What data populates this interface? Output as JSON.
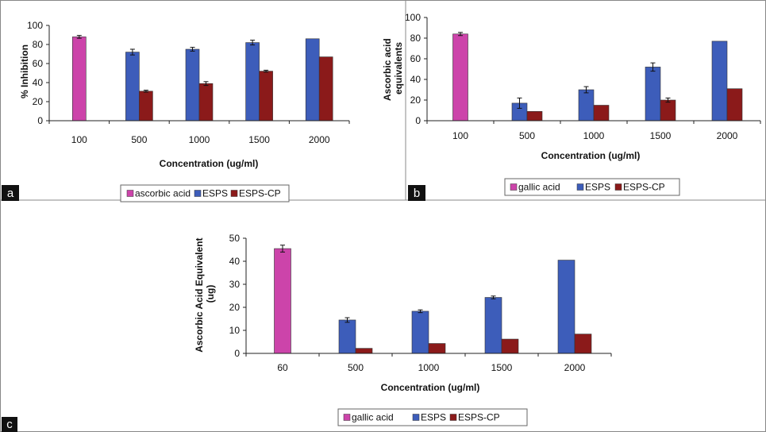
{
  "chart_data": [
    {
      "panel": "a",
      "type": "bar",
      "categories": [
        "100",
        "500",
        "1000",
        "1500",
        "2000"
      ],
      "series": [
        {
          "name": "ascorbic acid",
          "color": "#cc44aa",
          "values": [
            88,
            null,
            null,
            null,
            null
          ],
          "errors": [
            1.5,
            null,
            null,
            null,
            null
          ]
        },
        {
          "name": "ESPS",
          "color": "#3d5dba",
          "values": [
            null,
            72,
            75,
            82,
            86
          ],
          "errors": [
            null,
            3,
            2,
            2.5,
            0
          ]
        },
        {
          "name": "ESPS-CP",
          "color": "#8b1a1a",
          "values": [
            null,
            31,
            39,
            52,
            67
          ],
          "errors": [
            null,
            1,
            2,
            1,
            0
          ]
        }
      ],
      "title": "",
      "xlabel": "Concentration (ug/ml)",
      "ylabel": "% Inhibition",
      "ylim": [
        0,
        100
      ],
      "yticks": [
        0,
        20,
        40,
        60,
        80,
        100
      ],
      "grid": false,
      "legend_placement": "bottom"
    },
    {
      "panel": "b",
      "type": "bar",
      "categories": [
        "100",
        "500",
        "1000",
        "1500",
        "2000"
      ],
      "series": [
        {
          "name": "gallic acid",
          "color": "#cc44aa",
          "values": [
            84,
            null,
            null,
            null,
            null
          ],
          "errors": [
            1.5,
            null,
            null,
            null,
            null
          ]
        },
        {
          "name": "ESPS",
          "color": "#3d5dba",
          "values": [
            null,
            17,
            30,
            52,
            77
          ],
          "errors": [
            null,
            5,
            3,
            4,
            0
          ]
        },
        {
          "name": "ESPS-CP",
          "color": "#8b1a1a",
          "values": [
            null,
            9,
            15,
            20,
            31
          ],
          "errors": [
            null,
            0,
            0,
            2,
            0
          ]
        }
      ],
      "title": "",
      "xlabel": "Concentration (ug/ml)",
      "ylabel": "Ascorbic acid equivalents",
      "ylim": [
        0,
        100
      ],
      "yticks": [
        0,
        20,
        40,
        60,
        80,
        100
      ],
      "grid": false,
      "legend_placement": "bottom"
    },
    {
      "panel": "c",
      "type": "bar",
      "categories": [
        "60",
        "500",
        "1000",
        "1500",
        "2000"
      ],
      "series": [
        {
          "name": "gallic acid",
          "color": "#cc44aa",
          "values": [
            45.5,
            null,
            null,
            null,
            null
          ],
          "errors": [
            1.5,
            null,
            null,
            null,
            null
          ]
        },
        {
          "name": "ESPS",
          "color": "#3d5dba",
          "values": [
            null,
            14.5,
            18.3,
            24.3,
            40.5
          ],
          "errors": [
            null,
            1,
            0.6,
            0.6,
            0
          ]
        },
        {
          "name": "ESPS-CP",
          "color": "#8b1a1a",
          "values": [
            null,
            2.2,
            4.3,
            6.2,
            8.4
          ],
          "errors": [
            null,
            0,
            0,
            0,
            0
          ]
        }
      ],
      "title": "",
      "xlabel": "Concentration (ug/ml)",
      "ylabel": "Ascorbic Acid Equivalent (ug)",
      "ylim": [
        0,
        50
      ],
      "yticks": [
        0,
        10,
        20,
        30,
        40,
        50
      ],
      "grid": false,
      "legend_placement": "bottom"
    }
  ],
  "panels": {
    "a": {
      "letter": "a",
      "ylabel_lines": [
        "% Inhibition"
      ]
    },
    "b": {
      "letter": "b",
      "ylabel_lines": [
        "Ascorbic acid",
        "equivalents"
      ]
    },
    "c": {
      "letter": "c",
      "ylabel_lines": [
        "Ascorbic Acid Equivalent",
        "(ug)"
      ]
    }
  },
  "colors": {
    "border": "#888888",
    "axis": "#222222",
    "panel_letter_bg": "#111111"
  }
}
